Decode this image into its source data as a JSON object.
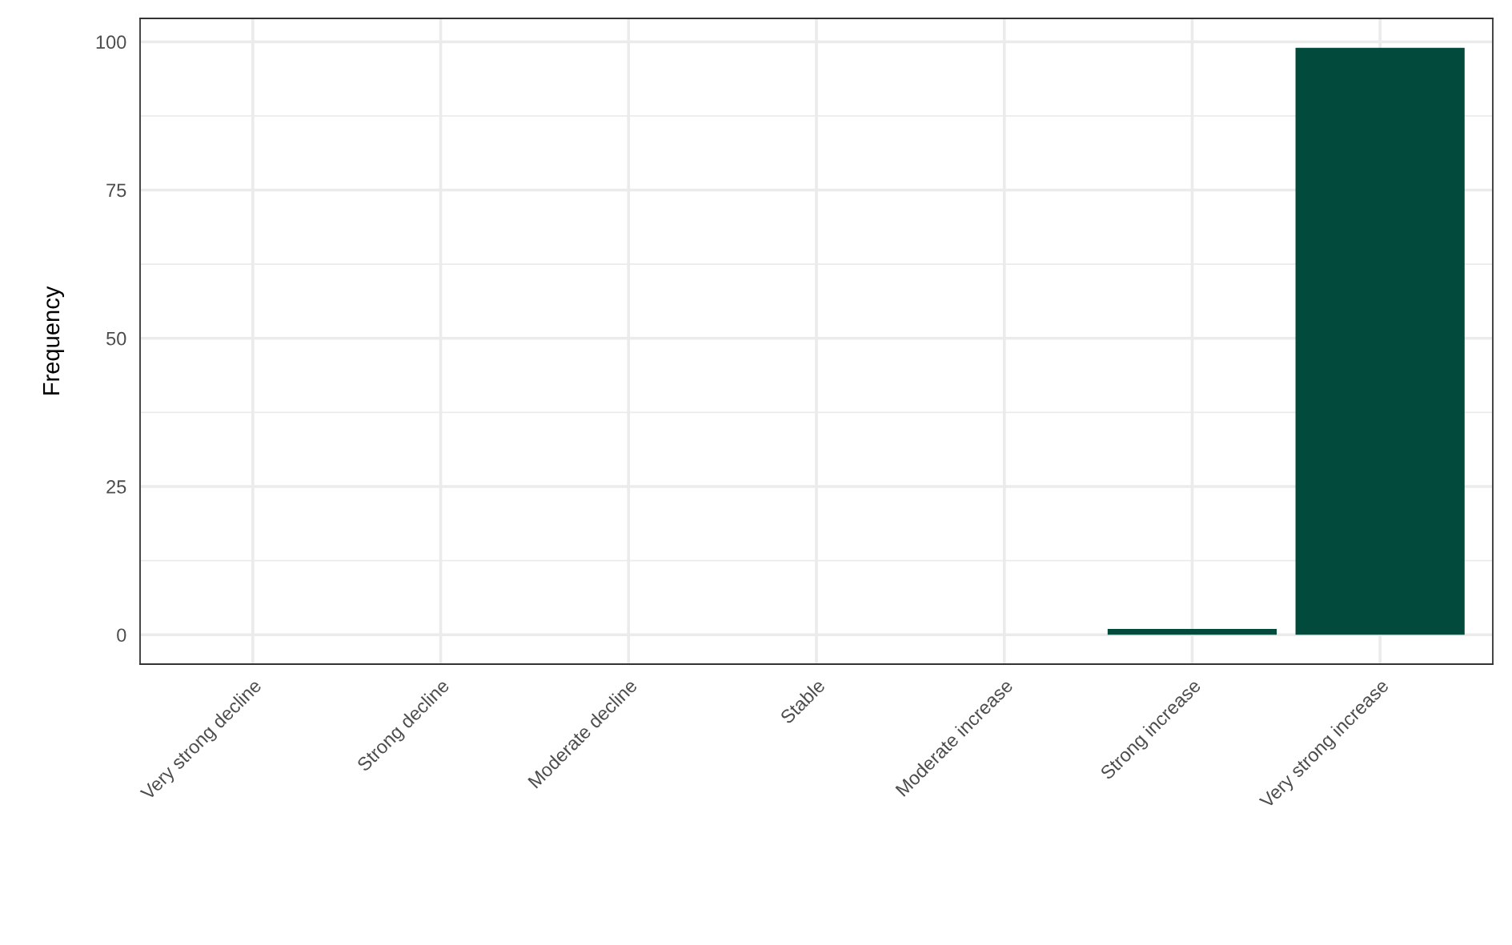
{
  "chart_data": {
    "type": "bar",
    "ylabel": "Frequency",
    "categories": [
      "Very strong decline",
      "Strong decline",
      "Moderate decline",
      "Stable",
      "Moderate increase",
      "Strong increase",
      "Very strong increase"
    ],
    "values": [
      0,
      0,
      0,
      0,
      0,
      1,
      99
    ],
    "color": "#024b3c",
    "ylim": [
      -4.95,
      103.95
    ],
    "yticks": [
      0,
      {
        "value": 12.5,
        "label": null
      },
      25,
      {
        "value": 37.5,
        "label": null
      },
      50,
      {
        "value": 62.5,
        "label": null
      },
      75,
      {
        "value": 87.5,
        "label": null
      },
      100
    ],
    "grid": true
  }
}
